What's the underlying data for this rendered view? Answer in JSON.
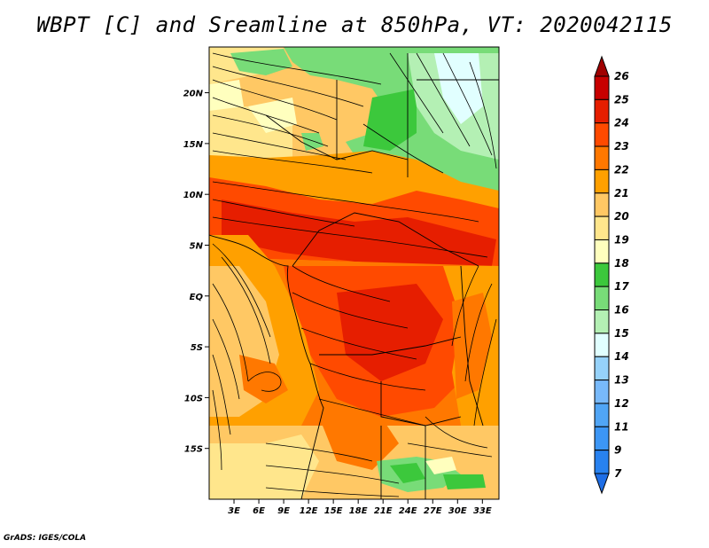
{
  "title": "WBPT [C] and Sreamline at 850hPa, VT: 2020042115",
  "credit": "GrADS: IGES/COLA",
  "map": {
    "lon_range": [
      0,
      35
    ],
    "lat_range": [
      -20,
      24.5
    ],
    "lat_ticks": [
      {
        "value": 20,
        "label": "20N"
      },
      {
        "value": 15,
        "label": "15N"
      },
      {
        "value": 10,
        "label": "10N"
      },
      {
        "value": 5,
        "label": "5N"
      },
      {
        "value": 0,
        "label": "EQ"
      },
      {
        "value": -5,
        "label": "5S"
      },
      {
        "value": -10,
        "label": "10S"
      },
      {
        "value": -15,
        "label": "15S"
      }
    ],
    "lon_ticks": [
      {
        "value": 3,
        "label": "3E"
      },
      {
        "value": 6,
        "label": "6E"
      },
      {
        "value": 9,
        "label": "9E"
      },
      {
        "value": 12,
        "label": "12E"
      },
      {
        "value": 15,
        "label": "15E"
      },
      {
        "value": 18,
        "label": "18E"
      },
      {
        "value": 21,
        "label": "21E"
      },
      {
        "value": 24,
        "label": "24E"
      },
      {
        "value": 27,
        "label": "27E"
      },
      {
        "value": 30,
        "label": "30E"
      },
      {
        "value": 33,
        "label": "33E"
      }
    ]
  },
  "colorbar": {
    "levels": [
      "7",
      "9",
      "11",
      "12",
      "13",
      "14",
      "15",
      "16",
      "17",
      "18",
      "19",
      "20",
      "21",
      "22",
      "23",
      "24",
      "25",
      "26"
    ],
    "colors": [
      "#1e6ee6",
      "#2882f0",
      "#3c96f5",
      "#50a5f5",
      "#78b9fa",
      "#96d2fa",
      "#e1ffff",
      "#b4f0b4",
      "#78dc78",
      "#3cc83c",
      "#ffffbe",
      "#ffe68c",
      "#ffc864",
      "#ffa000",
      "#ff7800",
      "#ff4a00",
      "#e61e00",
      "#c80000",
      "#a00000"
    ]
  }
}
